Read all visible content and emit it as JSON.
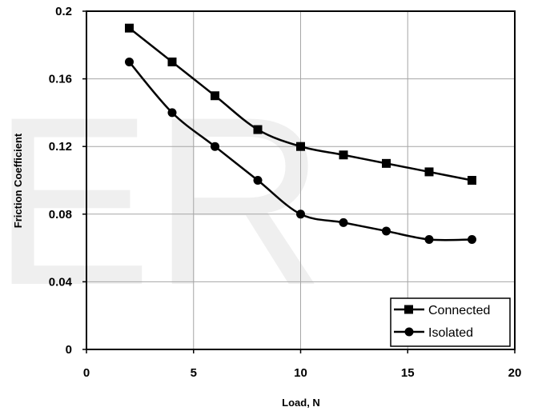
{
  "watermark": "ER",
  "chart_data": {
    "type": "line",
    "xlabel": "Load, N",
    "ylabel": "Friction Coefficient",
    "xlim": [
      0,
      20
    ],
    "ylim": [
      0,
      0.2
    ],
    "x_ticks": [
      "0",
      "5",
      "10",
      "15",
      "20"
    ],
    "y_ticks": [
      "0",
      "0.04",
      "0.08",
      "0.12",
      "0.16",
      "0.2"
    ],
    "grid": true,
    "legend_position": "bottom-right",
    "series": [
      {
        "name": "Connected",
        "marker": "square",
        "color": "#000000",
        "x": [
          2,
          4,
          6,
          8,
          10,
          12,
          14,
          16,
          18
        ],
        "y": [
          0.19,
          0.17,
          0.15,
          0.13,
          0.12,
          0.115,
          0.11,
          0.105,
          0.1
        ]
      },
      {
        "name": "Isolated",
        "marker": "circle",
        "color": "#000000",
        "x": [
          2,
          4,
          6,
          8,
          10,
          12,
          14,
          16,
          18
        ],
        "y": [
          0.17,
          0.14,
          0.12,
          0.1,
          0.08,
          0.075,
          0.07,
          0.065,
          0.065
        ]
      }
    ]
  }
}
